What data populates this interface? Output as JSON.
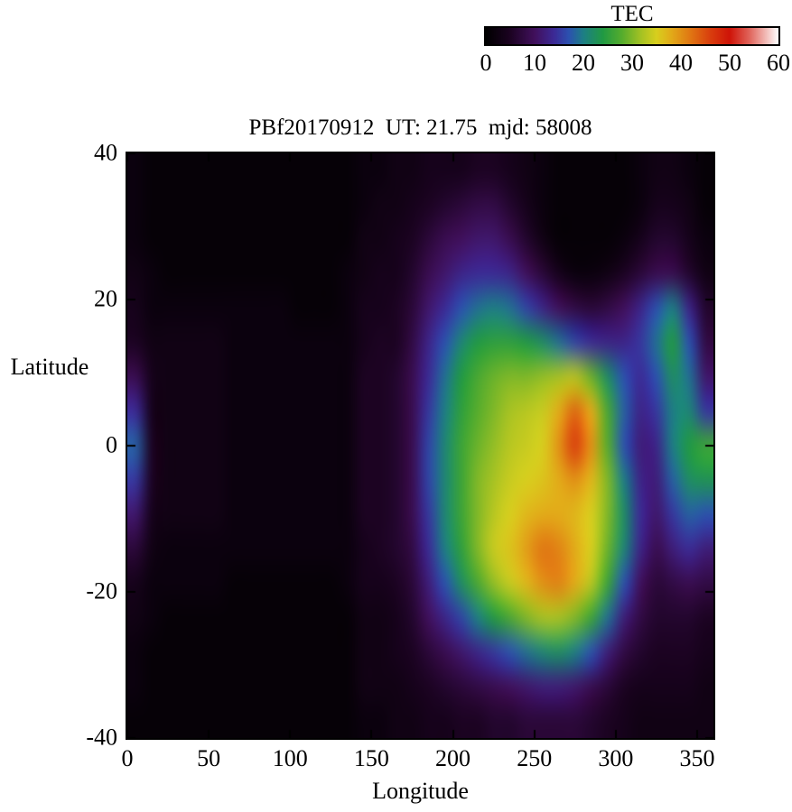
{
  "title": "PBf20170912  UT: 21.75  mjd: 58008",
  "colorbar": {
    "title": "TEC",
    "min": 0,
    "max": 60,
    "ticks": [
      0,
      10,
      20,
      30,
      40,
      50,
      60
    ]
  },
  "axes": {
    "xlabel": "Longitude",
    "ylabel": "Latitude",
    "x_ticks": [
      0,
      50,
      100,
      150,
      200,
      250,
      300,
      350
    ],
    "y_ticks": [
      40,
      20,
      0,
      -20,
      -40
    ],
    "xlim": [
      0,
      360
    ],
    "ylim": [
      -40,
      40
    ]
  },
  "colormap": [
    {
      "v": 0,
      "c": "#000000"
    },
    {
      "v": 5,
      "c": "#1c0322"
    },
    {
      "v": 10,
      "c": "#41105c"
    },
    {
      "v": 14,
      "c": "#3c2a96"
    },
    {
      "v": 17,
      "c": "#2c51b0"
    },
    {
      "v": 20,
      "c": "#1d7f85"
    },
    {
      "v": 24,
      "c": "#219a43"
    },
    {
      "v": 28,
      "c": "#57ad2d"
    },
    {
      "v": 32,
      "c": "#a8c323"
    },
    {
      "v": 35,
      "c": "#d8cf1e"
    },
    {
      "v": 38,
      "c": "#e2ab19"
    },
    {
      "v": 42,
      "c": "#e07613"
    },
    {
      "v": 46,
      "c": "#d93f0e"
    },
    {
      "v": 50,
      "c": "#cf1408"
    },
    {
      "v": 54,
      "c": "#e0635a"
    },
    {
      "v": 57,
      "c": "#f0b0ab"
    },
    {
      "v": 60,
      "c": "#ffffff"
    }
  ],
  "chart_data": {
    "type": "heatmap",
    "title": "PBf20170912  UT: 21.75  mjd: 58008",
    "xlabel": "Longitude",
    "ylabel": "Latitude",
    "zlabel": "TEC",
    "xlim": [
      0,
      360
    ],
    "ylim": [
      -40,
      40
    ],
    "zlim": [
      0,
      60
    ],
    "lons": [
      0,
      10,
      20,
      30,
      40,
      50,
      60,
      70,
      80,
      90,
      100,
      110,
      120,
      130,
      140,
      150,
      160,
      170,
      180,
      190,
      200,
      210,
      220,
      230,
      240,
      250,
      260,
      270,
      280,
      290,
      300,
      310,
      320,
      330,
      340,
      350
    ],
    "lats": [
      40,
      35,
      30,
      25,
      20,
      15,
      10,
      5,
      0,
      -5,
      -10,
      -15,
      -20,
      -25,
      -30,
      -35,
      -40
    ],
    "values": [
      [
        2,
        1,
        1,
        1,
        1,
        1,
        1,
        1,
        1,
        1,
        1,
        1,
        1,
        1,
        2,
        2,
        3,
        3,
        4,
        4,
        4,
        5,
        5,
        4,
        3,
        2,
        1,
        1,
        1,
        1,
        1,
        2,
        3,
        3,
        2,
        1
      ],
      [
        2,
        1,
        1,
        1,
        1,
        1,
        1,
        1,
        1,
        1,
        1,
        1,
        1,
        1,
        2,
        3,
        3,
        4,
        5,
        6,
        7,
        8,
        8,
        6,
        4,
        2,
        1,
        1,
        1,
        1,
        1,
        2,
        4,
        4,
        3,
        1
      ],
      [
        2,
        1,
        1,
        1,
        1,
        1,
        1,
        1,
        1,
        1,
        1,
        1,
        1,
        1,
        3,
        3,
        4,
        5,
        7,
        9,
        10,
        11,
        11,
        9,
        6,
        3,
        1,
        1,
        1,
        1,
        2,
        4,
        6,
        6,
        4,
        2
      ],
      [
        3,
        2,
        1,
        1,
        1,
        1,
        1,
        1,
        1,
        1,
        1,
        1,
        1,
        2,
        3,
        4,
        4,
        6,
        9,
        11,
        13,
        14,
        14,
        13,
        10,
        7,
        4,
        2,
        2,
        3,
        5,
        7,
        9,
        9,
        6,
        3
      ],
      [
        4,
        2,
        2,
        2,
        2,
        2,
        2,
        2,
        2,
        2,
        1,
        1,
        1,
        2,
        4,
        4,
        5,
        7,
        11,
        14,
        17,
        19,
        20,
        19,
        16,
        13,
        10,
        8,
        7,
        8,
        10,
        13,
        17,
        20,
        13,
        6
      ],
      [
        5,
        3,
        3,
        3,
        3,
        3,
        2,
        2,
        2,
        2,
        2,
        2,
        2,
        2,
        4,
        5,
        5,
        8,
        13,
        17,
        21,
        24,
        25,
        25,
        24,
        22,
        19,
        16,
        14,
        13,
        13,
        15,
        19,
        24,
        17,
        8
      ],
      [
        9,
        4,
        3,
        3,
        3,
        3,
        2,
        2,
        2,
        2,
        2,
        2,
        2,
        2,
        5,
        5,
        6,
        9,
        14,
        19,
        24,
        27,
        29,
        30,
        30,
        31,
        32,
        33,
        29,
        22,
        17,
        14,
        17,
        22,
        19,
        11
      ],
      [
        14,
        4,
        3,
        3,
        3,
        3,
        2,
        2,
        2,
        2,
        2,
        2,
        2,
        2,
        5,
        5,
        6,
        9,
        15,
        20,
        25,
        28,
        30,
        32,
        33,
        34,
        38,
        43,
        38,
        27,
        18,
        13,
        15,
        20,
        21,
        15
      ],
      [
        18,
        5,
        3,
        3,
        3,
        3,
        2,
        2,
        2,
        2,
        2,
        2,
        2,
        2,
        5,
        5,
        6,
        9,
        16,
        21,
        26,
        29,
        31,
        33,
        34,
        35,
        40,
        46,
        40,
        28,
        17,
        12,
        13,
        20,
        24,
        26
      ],
      [
        15,
        5,
        3,
        3,
        3,
        3,
        2,
        2,
        2,
        2,
        2,
        2,
        2,
        2,
        5,
        5,
        6,
        9,
        16,
        21,
        26,
        30,
        32,
        34,
        35,
        36,
        38,
        40,
        37,
        30,
        20,
        13,
        12,
        18,
        22,
        23
      ],
      [
        11,
        4,
        3,
        3,
        3,
        3,
        2,
        2,
        2,
        2,
        2,
        2,
        2,
        2,
        5,
        5,
        6,
        9,
        15,
        21,
        26,
        30,
        33,
        35,
        37,
        38,
        38,
        37,
        35,
        30,
        22,
        14,
        11,
        15,
        18,
        17
      ],
      [
        7,
        3,
        2,
        2,
        2,
        2,
        2,
        2,
        2,
        2,
        2,
        2,
        2,
        2,
        4,
        5,
        6,
        8,
        14,
        20,
        25,
        30,
        34,
        36,
        39,
        42,
        41,
        38,
        35,
        29,
        21,
        13,
        9,
        12,
        14,
        12
      ],
      [
        4,
        2,
        2,
        2,
        2,
        2,
        1,
        1,
        1,
        1,
        1,
        1,
        1,
        2,
        4,
        4,
        5,
        7,
        12,
        17,
        22,
        27,
        31,
        34,
        37,
        40,
        41,
        38,
        33,
        26,
        17,
        10,
        7,
        8,
        9,
        8
      ],
      [
        3,
        2,
        1,
        1,
        1,
        1,
        1,
        1,
        1,
        1,
        1,
        1,
        1,
        1,
        3,
        3,
        4,
        6,
        10,
        13,
        16,
        20,
        24,
        27,
        30,
        32,
        32,
        30,
        26,
        19,
        12,
        8,
        6,
        6,
        6,
        5
      ],
      [
        2,
        1,
        1,
        1,
        1,
        1,
        1,
        1,
        1,
        1,
        1,
        1,
        1,
        1,
        3,
        3,
        4,
        5,
        7,
        9,
        11,
        13,
        15,
        17,
        19,
        21,
        22,
        20,
        17,
        12,
        8,
        6,
        5,
        5,
        5,
        4
      ],
      [
        2,
        1,
        1,
        1,
        1,
        1,
        1,
        1,
        1,
        1,
        1,
        1,
        1,
        1,
        3,
        3,
        3,
        4,
        5,
        6,
        7,
        8,
        9,
        10,
        11,
        12,
        12,
        11,
        9,
        7,
        5,
        4,
        4,
        4,
        4,
        3
      ],
      [
        1,
        1,
        1,
        1,
        1,
        1,
        1,
        1,
        1,
        1,
        1,
        1,
        1,
        1,
        2,
        2,
        3,
        3,
        4,
        4,
        5,
        5,
        6,
        6,
        7,
        7,
        7,
        7,
        6,
        5,
        4,
        3,
        3,
        3,
        3,
        3
      ]
    ]
  }
}
